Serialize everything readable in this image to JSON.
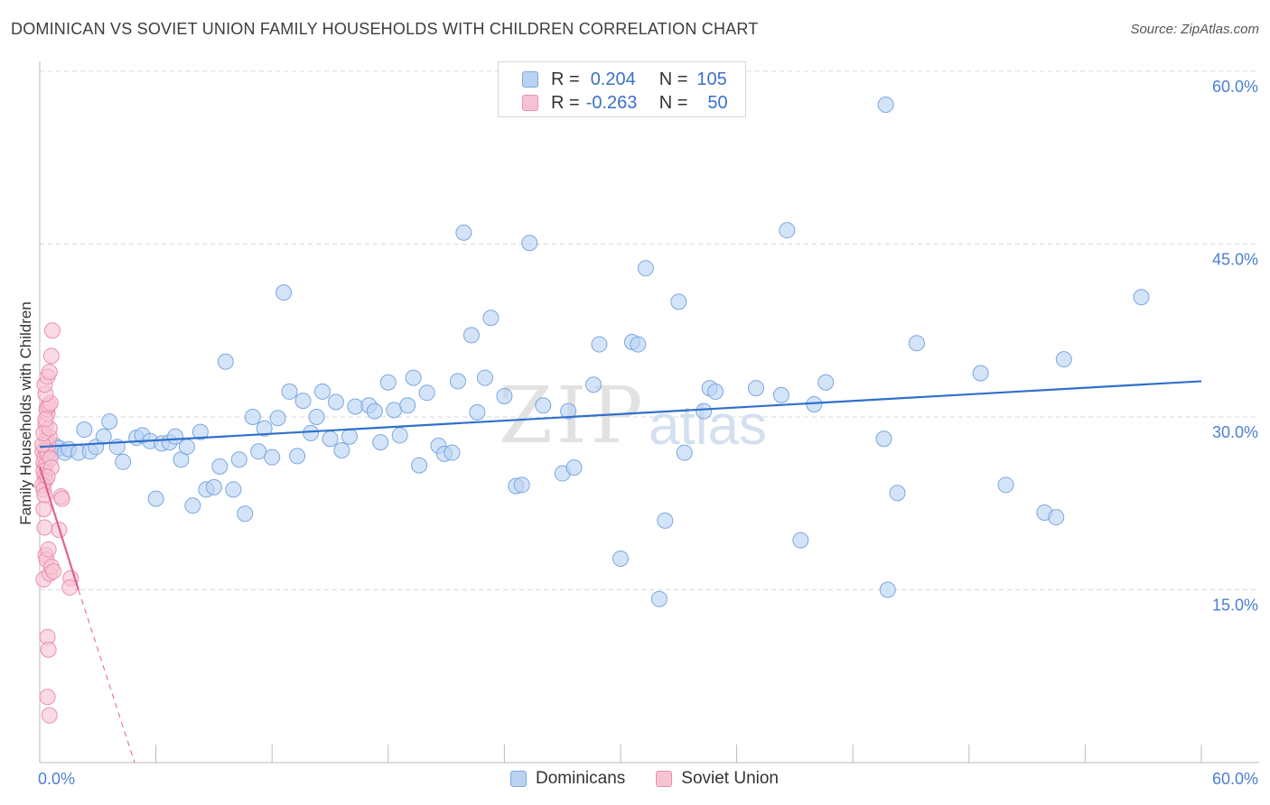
{
  "title": "DOMINICAN VS SOVIET UNION FAMILY HOUSEHOLDS WITH CHILDREN CORRELATION CHART",
  "source": "Source: ZipAtlas.com",
  "colors": {
    "blue_fill": "#bad3f3",
    "blue_stroke": "#7ba7e0",
    "blue_line": "#2f6fcc",
    "pink_fill": "#f7c3d2",
    "pink_stroke": "#eb8fac",
    "pink_line": "#e0628d",
    "axis_text": "#4a7fd4",
    "grid": "#d9d9d9"
  },
  "legend": {
    "rows": [
      {
        "r_label": "R =",
        "r_value": "0.204",
        "n_label": "N =",
        "n_value": "105"
      },
      {
        "r_label": "R =",
        "r_value": "-0.263",
        "n_label": "N =",
        "n_value": "50"
      }
    ]
  },
  "watermark": {
    "zip": "ZIP",
    "atlas": "atlas"
  },
  "chart_data": {
    "type": "scatter",
    "title": "DOMINICAN VS SOVIET UNION FAMILY HOUSEHOLDS WITH CHILDREN CORRELATION CHART",
    "xlabel": "",
    "ylabel": "Family Households with Children",
    "xlim": [
      0,
      60
    ],
    "ylim": [
      0,
      60
    ],
    "x_tick_labels": [
      "0.0%",
      "60.0%"
    ],
    "y_ticks": [
      15,
      30,
      45,
      60
    ],
    "y_tick_labels": [
      "15.0%",
      "30.0%",
      "45.0%",
      "60.0%"
    ],
    "grid": true,
    "legend": [
      "Dominicans",
      "Soviet Union"
    ],
    "series": [
      {
        "name": "Dominicans",
        "R": 0.204,
        "N": 105,
        "trend": {
          "x": [
            0,
            60
          ],
          "y": [
            27.4,
            33.1
          ]
        },
        "points": [
          [
            0.3,
            27.1
          ],
          [
            0.6,
            26.8
          ],
          [
            0.8,
            27.5
          ],
          [
            1.0,
            27.3
          ],
          [
            1.3,
            26.9
          ],
          [
            1.5,
            27.2
          ],
          [
            2.0,
            26.9
          ],
          [
            2.3,
            28.9
          ],
          [
            2.6,
            27.0
          ],
          [
            2.9,
            27.4
          ],
          [
            3.3,
            28.3
          ],
          [
            3.6,
            29.6
          ],
          [
            4.0,
            27.4
          ],
          [
            4.3,
            26.1
          ],
          [
            5.0,
            28.2
          ],
          [
            5.3,
            28.4
          ],
          [
            5.7,
            27.9
          ],
          [
            6.0,
            22.9
          ],
          [
            6.3,
            27.7
          ],
          [
            6.7,
            27.8
          ],
          [
            7.0,
            28.3
          ],
          [
            7.3,
            26.3
          ],
          [
            7.6,
            27.4
          ],
          [
            7.9,
            22.3
          ],
          [
            8.3,
            28.7
          ],
          [
            8.6,
            23.7
          ],
          [
            9.0,
            23.9
          ],
          [
            9.3,
            25.7
          ],
          [
            9.6,
            34.8
          ],
          [
            10.0,
            23.7
          ],
          [
            10.3,
            26.3
          ],
          [
            10.6,
            21.6
          ],
          [
            11.0,
            30.0
          ],
          [
            11.3,
            27.0
          ],
          [
            11.6,
            29.0
          ],
          [
            12.0,
            26.5
          ],
          [
            12.3,
            29.9
          ],
          [
            12.6,
            40.8
          ],
          [
            12.9,
            32.2
          ],
          [
            13.3,
            26.6
          ],
          [
            13.6,
            31.4
          ],
          [
            14.0,
            28.6
          ],
          [
            14.3,
            30.0
          ],
          [
            14.6,
            32.2
          ],
          [
            15.0,
            28.1
          ],
          [
            15.3,
            31.3
          ],
          [
            15.6,
            27.1
          ],
          [
            16.0,
            28.3
          ],
          [
            16.3,
            30.9
          ],
          [
            17.0,
            31.0
          ],
          [
            17.3,
            30.5
          ],
          [
            17.6,
            27.8
          ],
          [
            18.0,
            33.0
          ],
          [
            18.3,
            30.6
          ],
          [
            18.6,
            28.4
          ],
          [
            19.0,
            31.0
          ],
          [
            19.3,
            33.4
          ],
          [
            19.6,
            25.8
          ],
          [
            20.0,
            32.1
          ],
          [
            20.6,
            27.5
          ],
          [
            20.9,
            26.8
          ],
          [
            21.3,
            26.9
          ],
          [
            21.6,
            33.1
          ],
          [
            21.9,
            46.0
          ],
          [
            22.3,
            37.1
          ],
          [
            22.6,
            30.4
          ],
          [
            23.0,
            33.4
          ],
          [
            23.3,
            38.6
          ],
          [
            24.0,
            31.8
          ],
          [
            24.6,
            24.0
          ],
          [
            24.9,
            24.1
          ],
          [
            25.3,
            45.1
          ],
          [
            26.0,
            31.0
          ],
          [
            27.0,
            25.1
          ],
          [
            27.3,
            30.5
          ],
          [
            27.6,
            25.6
          ],
          [
            28.6,
            32.8
          ],
          [
            28.9,
            36.3
          ],
          [
            30.0,
            17.7
          ],
          [
            30.6,
            36.5
          ],
          [
            30.9,
            36.3
          ],
          [
            31.3,
            42.9
          ],
          [
            32.0,
            14.2
          ],
          [
            32.3,
            21.0
          ],
          [
            33.0,
            40.0
          ],
          [
            33.3,
            26.9
          ],
          [
            34.3,
            30.5
          ],
          [
            34.6,
            32.5
          ],
          [
            34.9,
            32.2
          ],
          [
            37.0,
            32.5
          ],
          [
            38.3,
            31.9
          ],
          [
            38.6,
            46.2
          ],
          [
            39.3,
            19.3
          ],
          [
            40.0,
            31.1
          ],
          [
            40.6,
            33.0
          ],
          [
            43.6,
            28.1
          ],
          [
            43.7,
            57.1
          ],
          [
            43.8,
            15.0
          ],
          [
            44.3,
            23.4
          ],
          [
            45.3,
            36.4
          ],
          [
            48.6,
            33.8
          ],
          [
            49.9,
            24.1
          ],
          [
            51.9,
            21.7
          ],
          [
            52.5,
            21.3
          ],
          [
            52.9,
            35.0
          ],
          [
            56.9,
            40.4
          ]
        ]
      },
      {
        "name": "Soviet Union",
        "R": -0.263,
        "N": 50,
        "trend": {
          "x": [
            0,
            2.0
          ],
          "y": [
            25.7,
            15.0
          ]
        },
        "trend_extension": {
          "x": [
            2.0,
            4.9
          ],
          "y": [
            15.0,
            0
          ]
        },
        "points": [
          [
            0.15,
            27.0
          ],
          [
            0.25,
            26.5
          ],
          [
            0.2,
            26.0
          ],
          [
            0.3,
            25.8
          ],
          [
            0.2,
            25.3
          ],
          [
            0.25,
            24.9
          ],
          [
            0.3,
            24.5
          ],
          [
            0.15,
            24.1
          ],
          [
            0.2,
            23.7
          ],
          [
            0.25,
            23.2
          ],
          [
            0.4,
            26.8
          ],
          [
            0.45,
            27.5
          ],
          [
            0.35,
            28.1
          ],
          [
            0.5,
            28.3
          ],
          [
            0.3,
            29.3
          ],
          [
            0.4,
            30.3
          ],
          [
            0.35,
            30.7
          ],
          [
            0.45,
            31.0
          ],
          [
            0.55,
            31.2
          ],
          [
            0.3,
            32.0
          ],
          [
            0.25,
            32.8
          ],
          [
            0.4,
            33.5
          ],
          [
            0.5,
            33.9
          ],
          [
            0.6,
            35.3
          ],
          [
            0.65,
            37.5
          ],
          [
            0.2,
            22.0
          ],
          [
            0.25,
            20.4
          ],
          [
            0.3,
            18.0
          ],
          [
            0.35,
            17.6
          ],
          [
            0.45,
            18.5
          ],
          [
            0.2,
            15.9
          ],
          [
            0.5,
            16.4
          ],
          [
            0.6,
            17.0
          ],
          [
            0.4,
            10.9
          ],
          [
            0.45,
            9.8
          ],
          [
            0.4,
            5.7
          ],
          [
            0.5,
            4.1
          ],
          [
            1.0,
            20.2
          ],
          [
            1.1,
            23.1
          ],
          [
            1.15,
            22.9
          ],
          [
            0.15,
            27.6
          ],
          [
            0.2,
            28.6
          ],
          [
            0.55,
            26.4
          ],
          [
            0.6,
            25.6
          ],
          [
            0.4,
            24.8
          ],
          [
            0.5,
            29.0
          ],
          [
            0.3,
            29.8
          ],
          [
            1.6,
            16.0
          ],
          [
            1.55,
            15.2
          ],
          [
            0.7,
            16.6
          ]
        ]
      }
    ]
  }
}
